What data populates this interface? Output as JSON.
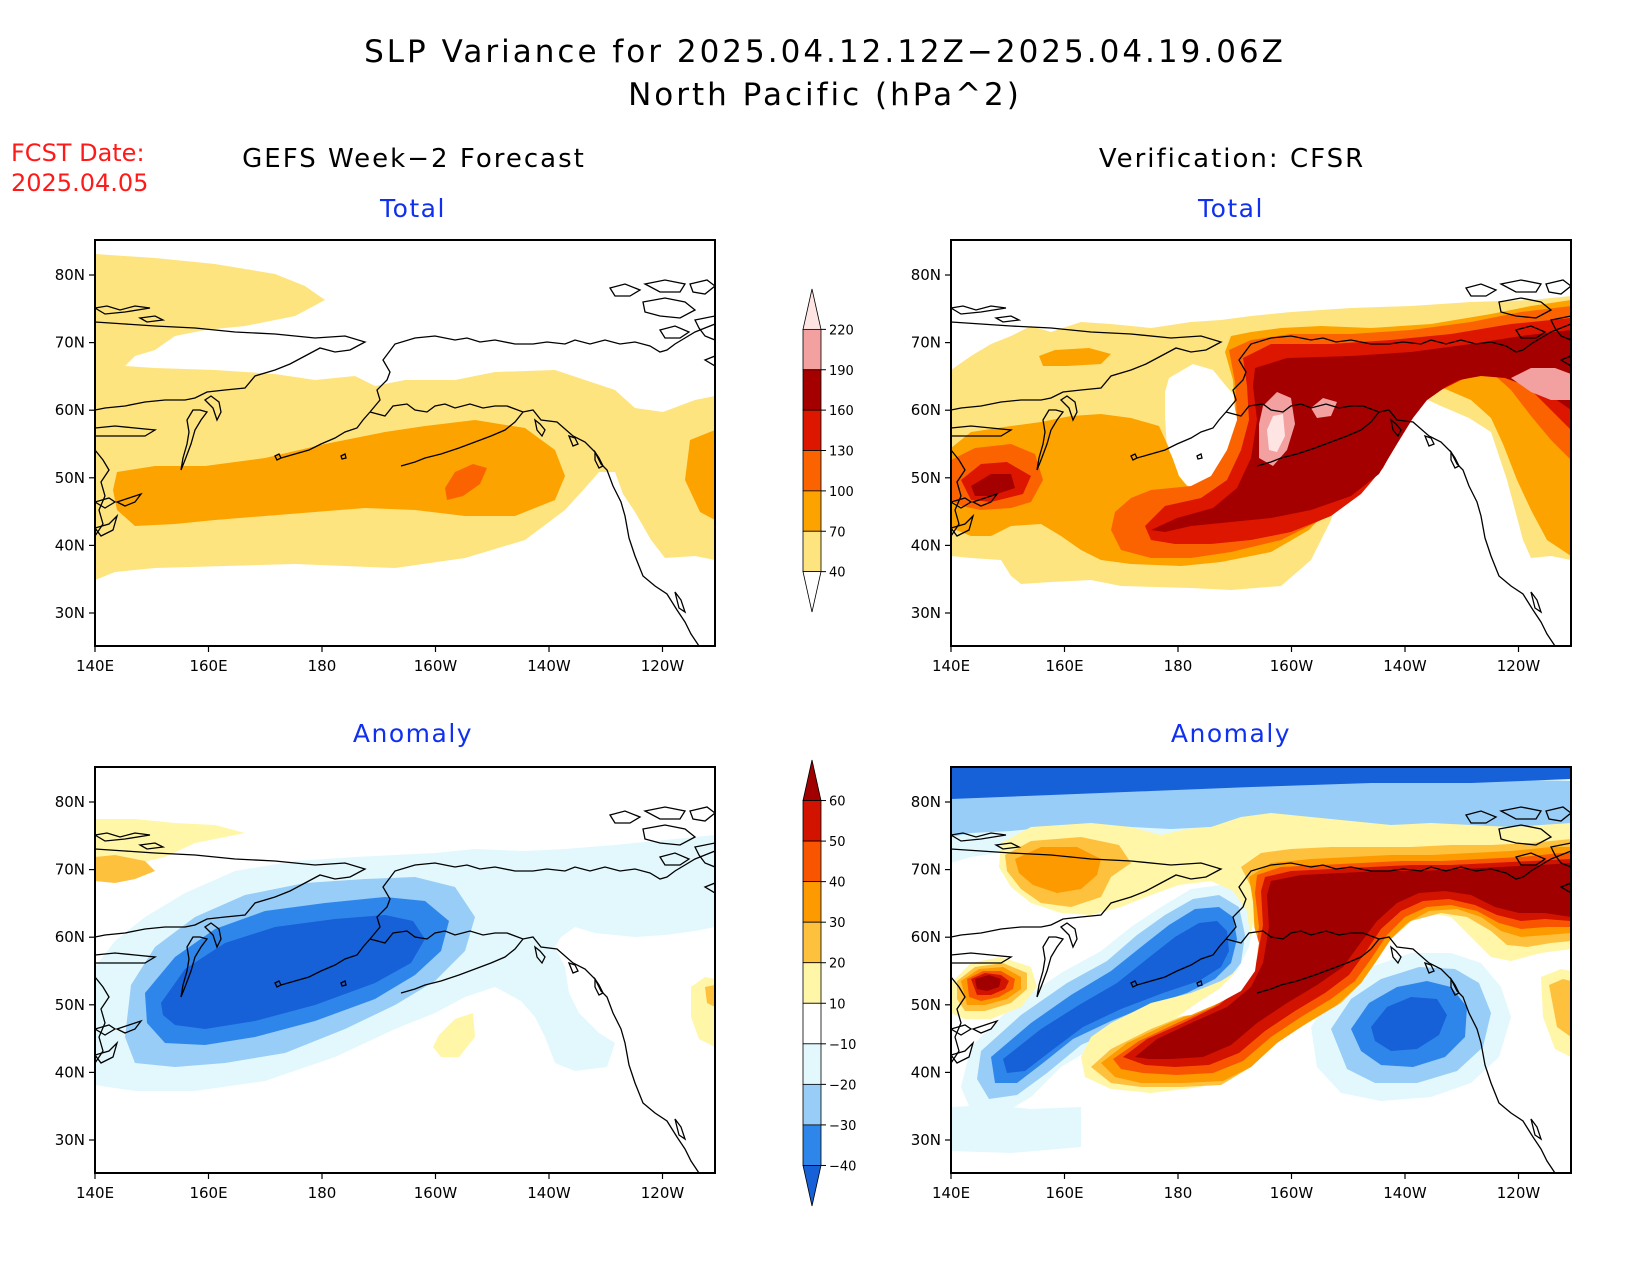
{
  "title": {
    "line1": "SLP Variance for 2025.04.12.12Z−2025.04.19.06Z",
    "line2": "North Pacific (hPa^2)"
  },
  "fcst_date": {
    "label": "FCST Date:",
    "value": "2025.04.05"
  },
  "columns": {
    "left": "GEFS Week−2 Forecast",
    "right": "Verification: CFSR"
  },
  "panels": {
    "top_left": "Total",
    "top_right": "Total",
    "bottom_left": "Anomaly",
    "bottom_right": "Anomaly"
  },
  "axes": {
    "lon_labels": [
      "140E",
      "160E",
      "180",
      "160W",
      "140W",
      "120W"
    ],
    "lat_labels": [
      "30N",
      "40N",
      "50N",
      "60N",
      "70N",
      "80N"
    ]
  },
  "colorbar_total": {
    "labels": [
      "40",
      "70",
      "100",
      "130",
      "160",
      "190",
      "220"
    ],
    "colors": [
      "#ffffff",
      "#fee47f",
      "#fda300",
      "#fb6300",
      "#dd1600",
      "#a50000",
      "#f2a0a0",
      "#ffe4e4"
    ]
  },
  "colorbar_anom": {
    "labels": [
      "−40",
      "−30",
      "−20",
      "−10",
      "10",
      "20",
      "30",
      "40",
      "50",
      "60"
    ],
    "colors": [
      "#1660d8",
      "#2f86ea",
      "#97cdf7",
      "#e2f8fd",
      "#ffffff",
      "#fff6a8",
      "#fec13e",
      "#fd9a00",
      "#f95500",
      "#d21300",
      "#a00000"
    ]
  }
}
